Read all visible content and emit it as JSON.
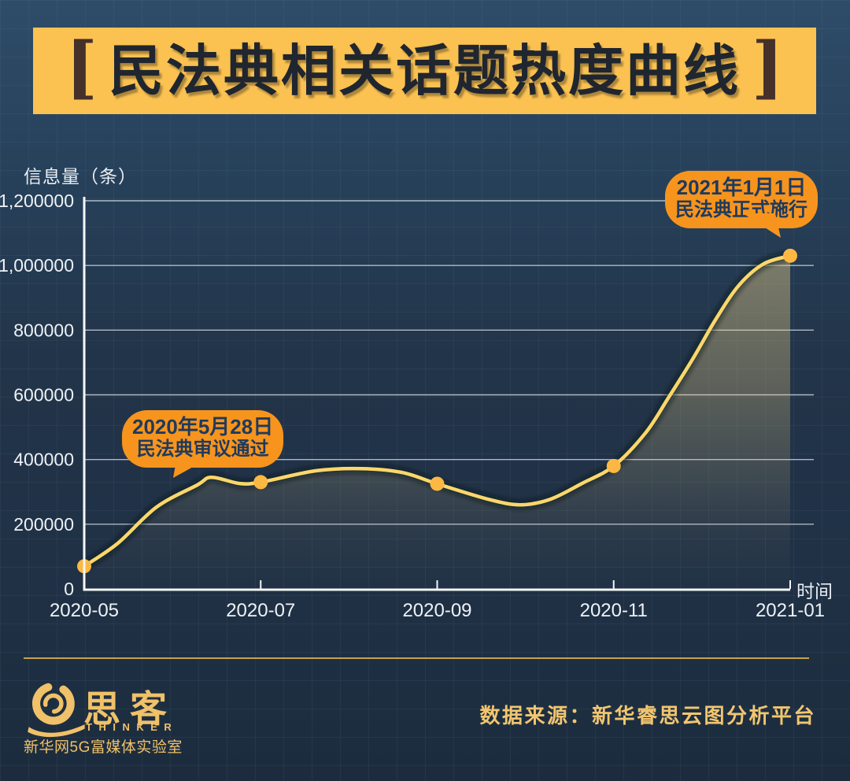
{
  "title": {
    "bracket_left": "[",
    "text": "民法典相关话题热度曲线",
    "bracket_right": "]"
  },
  "axis_labels": {
    "y_unit": "信息量（条）",
    "x_unit": "时间"
  },
  "chart_data": {
    "type": "line",
    "title": "民法典相关话题热度曲线",
    "ylabel": "信息量（条）",
    "xlabel": "时间",
    "ylim": [
      0,
      1200000
    ],
    "grid": "horizontal-lines",
    "legend": "none",
    "x_categories": [
      "2020-05",
      "2020-07",
      "2020-09",
      "2020-11",
      "2021-01"
    ],
    "y_ticks": [
      {
        "v": 0,
        "label": "0"
      },
      {
        "v": 200000,
        "label": "200000"
      },
      {
        "v": 400000,
        "label": "400000"
      },
      {
        "v": 600000,
        "label": "600000"
      },
      {
        "v": 800000,
        "label": "800000"
      },
      {
        "v": 1000000,
        "label": "1,000000"
      },
      {
        "v": 1200000,
        "label": "1,200000"
      }
    ],
    "series": [
      {
        "name": "信息量",
        "color": "#ffd66b",
        "points": [
          {
            "x": "2020-05",
            "value": 70000
          },
          {
            "x": "2020-07",
            "value": 330000
          },
          {
            "x": "2020-09",
            "value": 325000
          },
          {
            "x": "2020-11",
            "value": 380000
          },
          {
            "x": "2021-01",
            "value": 1030000
          }
        ]
      }
    ],
    "curve_samples": [
      [
        0,
        70000
      ],
      [
        0.19,
        141000
      ],
      [
        0.41,
        253000
      ],
      [
        0.64,
        321000
      ],
      [
        0.72,
        345000
      ],
      [
        0.88,
        326000
      ],
      [
        1,
        330000
      ],
      [
        1.31,
        365000
      ],
      [
        1.57,
        372000
      ],
      [
        1.8,
        360000
      ],
      [
        2,
        325000
      ],
      [
        2.29,
        277000
      ],
      [
        2.47,
        260000
      ],
      [
        2.64,
        277000
      ],
      [
        2.82,
        326000
      ],
      [
        3,
        380000
      ],
      [
        3.18,
        482000
      ],
      [
        3.31,
        591000
      ],
      [
        3.45,
        713000
      ],
      [
        3.58,
        835000
      ],
      [
        3.71,
        939000
      ],
      [
        3.85,
        1005000
      ],
      [
        4,
        1030000
      ]
    ],
    "annotations": [
      {
        "date": "2020年5月28日",
        "event": "民法典审议通过",
        "anchor_x": "2020-05-28",
        "anchor_value": 340000
      },
      {
        "date": "2021年1月1日",
        "event": "民法典正式施行",
        "anchor_x": "2021-01",
        "anchor_value": 1030000
      }
    ]
  },
  "annotations": {
    "left": {
      "line1": "2020年5月28日",
      "line2": "民法典审议通过"
    },
    "right": {
      "line1": "2021年1月1日",
      "line2": "民法典正式施行"
    }
  },
  "footer": {
    "logo_cn": "思客",
    "logo_en": "THINKER",
    "logo_sub": "新华网5G富媒体实验室",
    "source": "数据来源：新华睿思云图分析平台"
  },
  "colors": {
    "background_top": "#2e4c68",
    "background_bottom": "#1c2c3e",
    "banner": "#fbc251",
    "title_text": "#20262f",
    "bracket": "#46302a",
    "bubble": "#f7941d",
    "bubble_text": "#1e3a5e",
    "line": "#ffd66b",
    "dot": "#fdb843",
    "area_fill": "#eccf86",
    "axis": "#f4f6f8",
    "gridline": "#dde4ea",
    "tick_text": "#eef2f6",
    "gold": "#f0c169",
    "divider": "#c8a24b"
  }
}
